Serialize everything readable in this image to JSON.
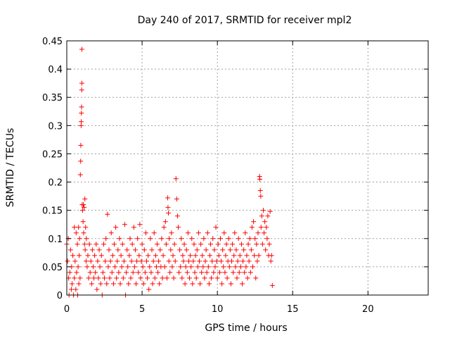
{
  "chart_data": {
    "type": "scatter",
    "title": "Day 240 of 2017, SRMTID for receiver mpl2",
    "xlabel": "GPS time / hours",
    "ylabel": "SRMTID / TECUs",
    "xlim": [
      0,
      24
    ],
    "ylim": [
      0,
      0.45
    ],
    "xticks": [
      0,
      5,
      10,
      15,
      20
    ],
    "xtick_labels": [
      "0",
      "5",
      "10",
      "15",
      "20"
    ],
    "yticks": [
      0,
      0.05,
      0.1,
      0.15,
      0.2,
      0.25,
      0.3,
      0.35,
      0.4,
      0.45
    ],
    "ytick_labels": [
      "0",
      "0.05",
      "0.1",
      "0.15",
      "0.2",
      "0.25",
      "0.3",
      "0.35",
      "0.4",
      "0.45"
    ],
    "grid": true,
    "marker": "+",
    "color": "#ff0000",
    "series": [
      {
        "name": "SRMTID",
        "points": [
          [
            0.0,
            0.09
          ],
          [
            0.05,
            0.06
          ],
          [
            0.1,
            0.1
          ],
          [
            0.12,
            0.03
          ],
          [
            0.15,
            0.0
          ],
          [
            0.2,
            0.04
          ],
          [
            0.25,
            0.08
          ],
          [
            0.3,
            0.01
          ],
          [
            0.32,
            0.05
          ],
          [
            0.35,
            0.02
          ],
          [
            0.4,
            0.07
          ],
          [
            0.45,
            0.0
          ],
          [
            0.5,
            0.03
          ],
          [
            0.5,
            0.12
          ],
          [
            0.55,
            0.06
          ],
          [
            0.6,
            0.01
          ],
          [
            0.62,
            0.11
          ],
          [
            0.65,
            0.04
          ],
          [
            0.7,
            0.09
          ],
          [
            0.72,
            0.0
          ],
          [
            0.75,
            0.05
          ],
          [
            0.78,
            0.12
          ],
          [
            0.8,
            0.02
          ],
          [
            0.82,
            0.07
          ],
          [
            0.85,
            0.1
          ],
          [
            0.88,
            0.03
          ],
          [
            0.9,
            0.213
          ],
          [
            0.92,
            0.237
          ],
          [
            0.93,
            0.265
          ],
          [
            0.95,
            0.3
          ],
          [
            0.96,
            0.307
          ],
          [
            0.97,
            0.322
          ],
          [
            0.98,
            0.333
          ],
          [
            0.99,
            0.363
          ],
          [
            1.0,
            0.375
          ],
          [
            1.0,
            0.435
          ],
          [
            1.02,
            0.16
          ],
          [
            1.05,
            0.15
          ],
          [
            1.08,
            0.13
          ],
          [
            1.1,
            0.16
          ],
          [
            1.12,
            0.11
          ],
          [
            1.15,
            0.155
          ],
          [
            1.18,
            0.09
          ],
          [
            1.2,
            0.17
          ],
          [
            1.22,
            0.08
          ],
          [
            1.25,
            0.12
          ],
          [
            1.28,
            0.06
          ],
          [
            1.3,
            0.1
          ],
          [
            1.35,
            0.05
          ],
          [
            1.4,
            0.07
          ],
          [
            1.45,
            0.03
          ],
          [
            1.5,
            0.09
          ],
          [
            1.55,
            0.04
          ],
          [
            1.6,
            0.06
          ],
          [
            1.65,
            0.02
          ],
          [
            1.7,
            0.08
          ],
          [
            1.75,
            0.05
          ],
          [
            1.8,
            0.03
          ],
          [
            1.85,
            0.07
          ],
          [
            1.9,
            0.04
          ],
          [
            1.95,
            0.09
          ],
          [
            2.0,
            0.01
          ],
          [
            2.05,
            0.06
          ],
          [
            2.1,
            0.03
          ],
          [
            2.15,
            0.08
          ],
          [
            2.2,
            0.05
          ],
          [
            2.25,
            0.02
          ],
          [
            2.3,
            0.07
          ],
          [
            2.35,
            0.0
          ],
          [
            2.4,
            0.04
          ],
          [
            2.45,
            0.09
          ],
          [
            2.5,
            0.03
          ],
          [
            2.55,
            0.06
          ],
          [
            2.6,
            0.1
          ],
          [
            2.65,
            0.02
          ],
          [
            2.7,
            0.143
          ],
          [
            2.75,
            0.05
          ],
          [
            2.8,
            0.08
          ],
          [
            2.85,
            0.03
          ],
          [
            2.9,
            0.06
          ],
          [
            2.95,
            0.11
          ],
          [
            3.0,
            0.04
          ],
          [
            3.05,
            0.07
          ],
          [
            3.1,
            0.02
          ],
          [
            3.15,
            0.09
          ],
          [
            3.2,
            0.05
          ],
          [
            3.25,
            0.12
          ],
          [
            3.3,
            0.03
          ],
          [
            3.35,
            0.06
          ],
          [
            3.4,
            0.08
          ],
          [
            3.45,
            0.04
          ],
          [
            3.5,
            0.1
          ],
          [
            3.55,
            0.02
          ],
          [
            3.6,
            0.07
          ],
          [
            3.65,
            0.05
          ],
          [
            3.7,
            0.09
          ],
          [
            3.75,
            0.03
          ],
          [
            3.8,
            0.06
          ],
          [
            3.85,
            0.125
          ],
          [
            3.9,
            0.0
          ],
          [
            3.95,
            0.04
          ],
          [
            4.0,
            0.08
          ],
          [
            4.05,
            0.05
          ],
          [
            4.1,
            0.02
          ],
          [
            4.15,
            0.07
          ],
          [
            4.2,
            0.1
          ],
          [
            4.25,
            0.03
          ],
          [
            4.3,
            0.06
          ],
          [
            4.35,
            0.09
          ],
          [
            4.4,
            0.04
          ],
          [
            4.45,
            0.12
          ],
          [
            4.5,
            0.05
          ],
          [
            4.55,
            0.08
          ],
          [
            4.6,
            0.02
          ],
          [
            4.65,
            0.06
          ],
          [
            4.7,
            0.1
          ],
          [
            4.75,
            0.04
          ],
          [
            4.8,
            0.07
          ],
          [
            4.85,
            0.125
          ],
          [
            4.9,
            0.03
          ],
          [
            4.95,
            0.06
          ],
          [
            5.0,
            0.09
          ],
          [
            5.05,
            0.05
          ],
          [
            5.1,
            0.02
          ],
          [
            5.15,
            0.08
          ],
          [
            5.2,
            0.04
          ],
          [
            5.25,
            0.11
          ],
          [
            5.3,
            0.06
          ],
          [
            5.35,
            0.03
          ],
          [
            5.4,
            0.07
          ],
          [
            5.45,
            0.01
          ],
          [
            5.5,
            0.05
          ],
          [
            5.55,
            0.1
          ],
          [
            5.6,
            0.04
          ],
          [
            5.65,
            0.08
          ],
          [
            5.7,
            0.02
          ],
          [
            5.75,
            0.06
          ],
          [
            5.8,
            0.11
          ],
          [
            5.85,
            0.03
          ],
          [
            5.9,
            0.07
          ],
          [
            5.95,
            0.05
          ],
          [
            6.0,
            0.09
          ],
          [
            6.05,
            0.04
          ],
          [
            6.1,
            0.06
          ],
          [
            6.15,
            0.02
          ],
          [
            6.2,
            0.08
          ],
          [
            6.25,
            0.05
          ],
          [
            6.3,
            0.1
          ],
          [
            6.35,
            0.03
          ],
          [
            6.4,
            0.07
          ],
          [
            6.45,
            0.12
          ],
          [
            6.5,
            0.05
          ],
          [
            6.55,
            0.13
          ],
          [
            6.6,
            0.09
          ],
          [
            6.65,
            0.03
          ],
          [
            6.7,
            0.172
          ],
          [
            6.72,
            0.155
          ],
          [
            6.75,
            0.145
          ],
          [
            6.78,
            0.06
          ],
          [
            6.8,
            0.1
          ],
          [
            6.85,
            0.04
          ],
          [
            6.9,
            0.08
          ],
          [
            6.95,
            0.11
          ],
          [
            7.0,
            0.05
          ],
          [
            7.05,
            0.07
          ],
          [
            7.1,
            0.03
          ],
          [
            7.15,
            0.09
          ],
          [
            7.2,
            0.06
          ],
          [
            7.25,
            0.206
          ],
          [
            7.3,
            0.17
          ],
          [
            7.35,
            0.14
          ],
          [
            7.4,
            0.12
          ],
          [
            7.45,
            0.04
          ],
          [
            7.5,
            0.08
          ],
          [
            7.55,
            0.05
          ],
          [
            7.6,
            0.1
          ],
          [
            7.65,
            0.03
          ],
          [
            7.7,
            0.07
          ],
          [
            7.75,
            0.06
          ],
          [
            7.8,
            0.09
          ],
          [
            7.85,
            0.02
          ],
          [
            7.9,
            0.05
          ],
          [
            7.95,
            0.08
          ],
          [
            8.0,
            0.04
          ],
          [
            8.05,
            0.11
          ],
          [
            8.1,
            0.06
          ],
          [
            8.15,
            0.03
          ],
          [
            8.2,
            0.07
          ],
          [
            8.25,
            0.05
          ],
          [
            8.3,
            0.1
          ],
          [
            8.35,
            0.02
          ],
          [
            8.4,
            0.06
          ],
          [
            8.45,
            0.09
          ],
          [
            8.5,
            0.04
          ],
          [
            8.55,
            0.07
          ],
          [
            8.6,
            0.03
          ],
          [
            8.65,
            0.08
          ],
          [
            8.7,
            0.05
          ],
          [
            8.75,
            0.11
          ],
          [
            8.8,
            0.06
          ],
          [
            8.85,
            0.02
          ],
          [
            8.9,
            0.09
          ],
          [
            8.95,
            0.04
          ],
          [
            9.0,
            0.07
          ],
          [
            9.05,
            0.05
          ],
          [
            9.1,
            0.1
          ],
          [
            9.15,
            0.03
          ],
          [
            9.2,
            0.06
          ],
          [
            9.25,
            0.08
          ],
          [
            9.3,
            0.04
          ],
          [
            9.35,
            0.11
          ],
          [
            9.4,
            0.05
          ],
          [
            9.45,
            0.02
          ],
          [
            9.5,
            0.07
          ],
          [
            9.55,
            0.09
          ],
          [
            9.6,
            0.03
          ],
          [
            9.65,
            0.06
          ],
          [
            9.7,
            0.1
          ],
          [
            9.75,
            0.04
          ],
          [
            9.8,
            0.08
          ],
          [
            9.85,
            0.05
          ],
          [
            9.9,
            0.12
          ],
          [
            9.95,
            0.06
          ],
          [
            10.0,
            0.03
          ],
          [
            10.05,
            0.09
          ],
          [
            10.1,
            0.07
          ],
          [
            10.15,
            0.04
          ],
          [
            10.2,
            0.1
          ],
          [
            10.25,
            0.06
          ],
          [
            10.3,
            0.02
          ],
          [
            10.35,
            0.08
          ],
          [
            10.4,
            0.05
          ],
          [
            10.45,
            0.11
          ],
          [
            10.5,
            0.04
          ],
          [
            10.55,
            0.07
          ],
          [
            10.6,
            0.09
          ],
          [
            10.65,
            0.03
          ],
          [
            10.7,
            0.06
          ],
          [
            10.75,
            0.1
          ],
          [
            10.8,
            0.05
          ],
          [
            10.85,
            0.08
          ],
          [
            10.9,
            0.02
          ],
          [
            10.95,
            0.06
          ],
          [
            11.0,
            0.09
          ],
          [
            11.05,
            0.04
          ],
          [
            11.1,
            0.07
          ],
          [
            11.15,
            0.11
          ],
          [
            11.2,
            0.05
          ],
          [
            11.25,
            0.08
          ],
          [
            11.3,
            0.03
          ],
          [
            11.35,
            0.06
          ],
          [
            11.4,
            0.1
          ],
          [
            11.45,
            0.04
          ],
          [
            11.5,
            0.07
          ],
          [
            11.55,
            0.05
          ],
          [
            11.6,
            0.09
          ],
          [
            11.65,
            0.02
          ],
          [
            11.7,
            0.06
          ],
          [
            11.75,
            0.08
          ],
          [
            11.8,
            0.04
          ],
          [
            11.85,
            0.11
          ],
          [
            11.9,
            0.05
          ],
          [
            11.95,
            0.07
          ],
          [
            12.0,
            0.03
          ],
          [
            12.05,
            0.09
          ],
          [
            12.1,
            0.06
          ],
          [
            12.15,
            0.1
          ],
          [
            12.2,
            0.04
          ],
          [
            12.25,
            0.08
          ],
          [
            12.3,
            0.12
          ],
          [
            12.35,
            0.05
          ],
          [
            12.4,
            0.13
          ],
          [
            12.45,
            0.07
          ],
          [
            12.5,
            0.1
          ],
          [
            12.55,
            0.03
          ],
          [
            12.6,
            0.09
          ],
          [
            12.65,
            0.06
          ],
          [
            12.7,
            0.11
          ],
          [
            12.75,
            0.07
          ],
          [
            12.8,
            0.21
          ],
          [
            12.82,
            0.205
          ],
          [
            12.85,
            0.185
          ],
          [
            12.88,
            0.175
          ],
          [
            12.9,
            0.12
          ],
          [
            12.95,
            0.14
          ],
          [
            13.0,
            0.09
          ],
          [
            13.05,
            0.15
          ],
          [
            13.1,
            0.11
          ],
          [
            13.15,
            0.13
          ],
          [
            13.2,
            0.08
          ],
          [
            13.25,
            0.12
          ],
          [
            13.3,
            0.1
          ],
          [
            13.35,
            0.14
          ],
          [
            13.4,
            0.07
          ],
          [
            13.45,
            0.09
          ],
          [
            13.5,
            0.148
          ],
          [
            13.55,
            0.06
          ],
          [
            13.6,
            0.07
          ],
          [
            13.65,
            0.017
          ]
        ]
      }
    ]
  }
}
